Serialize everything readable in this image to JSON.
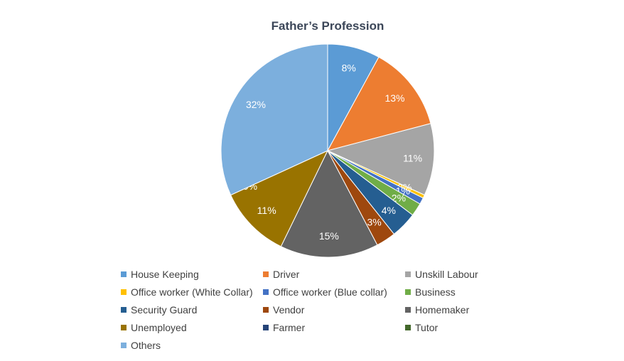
{
  "chart_data": {
    "type": "pie",
    "title": "Father’s Profession",
    "legend_position": "bottom",
    "slices": [
      {
        "label": "House Keeping",
        "value": 8,
        "display": "8%",
        "color": "#5b9bd5"
      },
      {
        "label": "Driver",
        "value": 13,
        "display": "13%",
        "color": "#ed7d31"
      },
      {
        "label": "Unskill Labour",
        "value": 11,
        "display": "11%",
        "color": "#a5a5a5"
      },
      {
        "label": "Office worker (White Collar)",
        "value": 0.5,
        "display": "0%",
        "color": "#ffc000"
      },
      {
        "label": "Office worker (Blue collar)",
        "value": 1,
        "display": "1%",
        "color": "#4472c4"
      },
      {
        "label": "Business",
        "value": 2,
        "display": "2%",
        "color": "#70ad47"
      },
      {
        "label": "Security Guard",
        "value": 4,
        "display": "4%",
        "color": "#255e91"
      },
      {
        "label": "Vendor",
        "value": 3,
        "display": "3%",
        "color": "#9e480e"
      },
      {
        "label": "Homemaker",
        "value": 15,
        "display": "15%",
        "color": "#636363"
      },
      {
        "label": "Unemployed",
        "value": 11,
        "display": "11%",
        "color": "#997300"
      },
      {
        "label": "Farmer",
        "value": 0,
        "display": "0%",
        "color": "#264478"
      },
      {
        "label": "Tutor",
        "value": 0,
        "display": "",
        "color": "#43682b"
      },
      {
        "label": "Others",
        "value": 32,
        "display": "32%",
        "color": "#7cafdd"
      }
    ]
  }
}
